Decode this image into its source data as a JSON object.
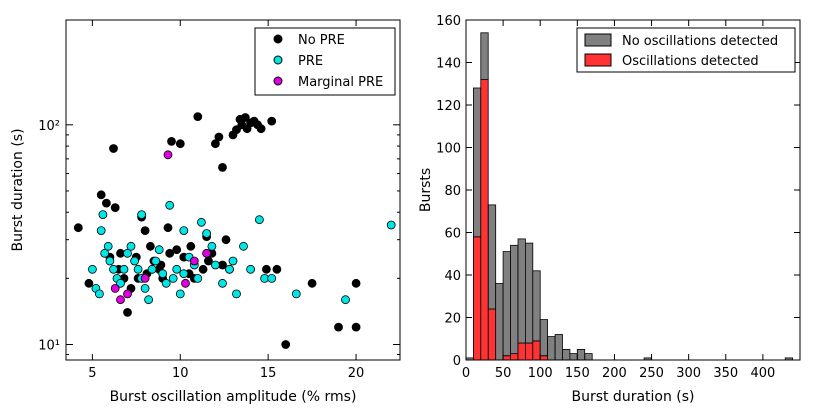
{
  "chart_data": [
    {
      "type": "scatter",
      "xlabel": "Burst oscillation amplitude (% rms)",
      "ylabel": "Burst duration (s)",
      "xlim": [
        3.5,
        22.5
      ],
      "ylim": [
        8.5,
        300
      ],
      "yscale": "log",
      "xticks": [
        5,
        10,
        15,
        20
      ],
      "yticks": [
        10,
        100
      ],
      "ytick_labels": [
        "10¹",
        "10²"
      ],
      "legend_position": "top-right",
      "series": [
        {
          "name": "No PRE",
          "color": "#000000",
          "points": [
            [
              4.2,
              34
            ],
            [
              4.8,
              19
            ],
            [
              5.5,
              48
            ],
            [
              5.8,
              44
            ],
            [
              6.0,
              25
            ],
            [
              6.2,
              78
            ],
            [
              6.3,
              42
            ],
            [
              6.5,
              22
            ],
            [
              6.8,
              20
            ],
            [
              7.0,
              14
            ],
            [
              7.5,
              25
            ],
            [
              7.8,
              38
            ],
            [
              8.0,
              33
            ],
            [
              8.3,
              28
            ],
            [
              8.5,
              24
            ],
            [
              8.8,
              22
            ],
            [
              9.0,
              20
            ],
            [
              9.3,
              34
            ],
            [
              9.5,
              84
            ],
            [
              9.8,
              27
            ],
            [
              10.0,
              82
            ],
            [
              10.2,
              25
            ],
            [
              10.5,
              21
            ],
            [
              10.8,
              20
            ],
            [
              11.0,
              109
            ],
            [
              11.3,
              22
            ],
            [
              11.5,
              31
            ],
            [
              11.8,
              26
            ],
            [
              12.0,
              82
            ],
            [
              12.2,
              88
            ],
            [
              12.4,
              64
            ],
            [
              12.6,
              30
            ],
            [
              12.8,
              22
            ],
            [
              13.0,
              90
            ],
            [
              13.2,
              95
            ],
            [
              13.4,
              106
            ],
            [
              13.5,
              100
            ],
            [
              13.7,
              108
            ],
            [
              13.8,
              96
            ],
            [
              14.0,
              102
            ],
            [
              14.2,
              104
            ],
            [
              14.4,
              100
            ],
            [
              14.6,
              96
            ],
            [
              14.9,
              22
            ],
            [
              15.2,
              104
            ],
            [
              15.5,
              22
            ],
            [
              16.0,
              10
            ],
            [
              17.5,
              19
            ],
            [
              19.0,
              12
            ],
            [
              20.0,
              19
            ],
            [
              20.0,
              12
            ],
            [
              7.2,
              18
            ],
            [
              7.6,
              20
            ],
            [
              8.1,
              21
            ],
            [
              8.9,
              23
            ],
            [
              9.4,
              26
            ],
            [
              10.6,
              28
            ],
            [
              11.6,
              24
            ],
            [
              12.4,
              23
            ],
            [
              6.6,
              26
            ]
          ]
        },
        {
          "name": "PRE",
          "color": "#00e5e5",
          "points": [
            [
              5.0,
              22
            ],
            [
              5.2,
              18
            ],
            [
              5.4,
              17
            ],
            [
              5.5,
              33
            ],
            [
              5.7,
              26
            ],
            [
              5.9,
              28
            ],
            [
              6.0,
              24
            ],
            [
              6.2,
              22
            ],
            [
              6.4,
              20
            ],
            [
              6.6,
              19
            ],
            [
              6.8,
              22
            ],
            [
              7.0,
              26
            ],
            [
              7.2,
              28
            ],
            [
              7.4,
              24
            ],
            [
              7.6,
              22
            ],
            [
              7.8,
              20
            ],
            [
              8.0,
              18
            ],
            [
              8.2,
              16
            ],
            [
              8.4,
              22
            ],
            [
              8.6,
              24
            ],
            [
              8.8,
              27
            ],
            [
              9.0,
              21
            ],
            [
              9.2,
              19
            ],
            [
              9.4,
              43
            ],
            [
              9.6,
              20
            ],
            [
              9.8,
              22
            ],
            [
              10.0,
              17
            ],
            [
              10.2,
              21
            ],
            [
              10.5,
              25
            ],
            [
              10.8,
              23
            ],
            [
              11.0,
              20
            ],
            [
              11.2,
              36
            ],
            [
              11.5,
              32
            ],
            [
              11.8,
              28
            ],
            [
              12.0,
              23
            ],
            [
              12.4,
              19
            ],
            [
              12.8,
              22
            ],
            [
              13.0,
              24
            ],
            [
              13.2,
              17
            ],
            [
              13.6,
              28
            ],
            [
              14.0,
              22
            ],
            [
              14.5,
              37
            ],
            [
              14.8,
              20
            ],
            [
              15.2,
              20
            ],
            [
              16.6,
              17
            ],
            [
              19.4,
              16
            ],
            [
              22.0,
              35
            ],
            [
              5.6,
              39
            ],
            [
              7.8,
              39
            ],
            [
              10.2,
              33
            ]
          ]
        },
        {
          "name": "Marginal PRE",
          "color": "#dd00dd",
          "points": [
            [
              6.3,
              18
            ],
            [
              6.6,
              16
            ],
            [
              7.0,
              17
            ],
            [
              8.0,
              20
            ],
            [
              9.3,
              73
            ],
            [
              10.3,
              19
            ],
            [
              10.8,
              24
            ],
            [
              11.5,
              26
            ]
          ]
        }
      ]
    },
    {
      "type": "bar",
      "subtype": "stacked-histogram",
      "xlabel": "Burst duration (s)",
      "ylabel": "Bursts",
      "xlim": [
        0,
        450
      ],
      "ylim": [
        0,
        160
      ],
      "bin_width": 10,
      "xticks": [
        0,
        50,
        100,
        150,
        200,
        250,
        300,
        350,
        400
      ],
      "yticks": [
        0,
        20,
        40,
        60,
        80,
        100,
        120,
        140,
        160
      ],
      "legend_position": "top-right",
      "bin_starts": [
        0,
        10,
        20,
        30,
        40,
        50,
        60,
        70,
        80,
        90,
        100,
        110,
        120,
        130,
        140,
        150,
        160,
        170,
        180,
        240,
        430
      ],
      "series": [
        {
          "name": "No oscillations detected",
          "color": "#808080",
          "values": [
            1,
            70,
            22,
            49,
            36,
            49,
            51,
            49,
            47,
            33,
            17,
            11,
            12,
            5,
            3,
            5,
            3,
            0,
            0,
            1,
            1
          ]
        },
        {
          "name": "Oscillations detected",
          "color": "#ff3333",
          "values": [
            0,
            58,
            132,
            24,
            0,
            2,
            3,
            8,
            8,
            9,
            2,
            0,
            0,
            0,
            0,
            0,
            0,
            0,
            0,
            0,
            0
          ]
        }
      ]
    }
  ]
}
